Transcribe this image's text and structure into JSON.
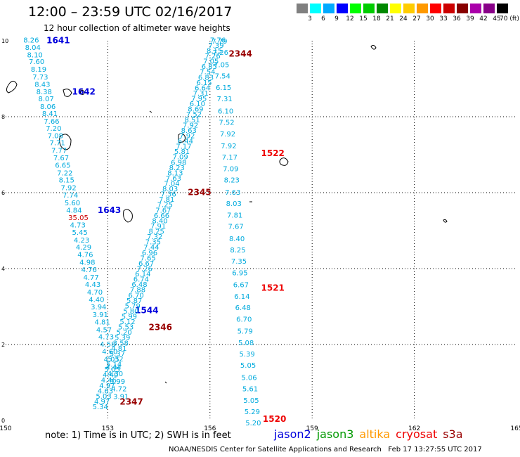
{
  "header": {
    "title": "12:00 – 23:59 UTC 02/16/2017",
    "subtitle": "12 hour collection of altimeter wave heights"
  },
  "color_scale": {
    "labels": [
      "3",
      "6",
      "9",
      "12",
      "15",
      "18",
      "21",
      "24",
      "27",
      "30",
      "33",
      "36",
      "39",
      "42",
      "45",
      "70 (ft)"
    ],
    "colors": [
      "#808080",
      "#00ffff",
      "#00aaff",
      "#0000ff",
      "#00ff00",
      "#00cc00",
      "#008800",
      "#ffff00",
      "#ffcc00",
      "#ff9900",
      "#ff0000",
      "#cc0000",
      "#880000",
      "#aa00aa",
      "#880088",
      "#000000"
    ]
  },
  "footer": {
    "note": "note: 1) Time is in UTC; 2) SWH is in feet",
    "credit": "NOAA/NESDIS Center for Satellite Applications and Research   Feb 17 13:27:55 UTC 2017"
  },
  "legend": [
    {
      "name": "jason2",
      "color": "#0000dd"
    },
    {
      "name": "jason3",
      "color": "#009900"
    },
    {
      "name": "altika",
      "color": "#ff9900"
    },
    {
      "name": "cryosat",
      "color": "#ee0000"
    },
    {
      "name": "s3a",
      "color": "#990000"
    }
  ],
  "chart_data": {
    "type": "scatter",
    "x_ticks": [
      "150",
      "153",
      "156",
      "159",
      "162",
      "165"
    ],
    "y_ticks": [
      "0",
      "2",
      "4",
      "6",
      "8",
      "10"
    ],
    "xlim": [
      150,
      165
    ],
    "ylim": [
      0,
      10
    ],
    "grid": true,
    "value_color": "#00aadd",
    "series": [
      {
        "name": "jason2",
        "label_color": "#0000dd",
        "points": [
          [
            150.52,
            10.03,
            "8.26"
          ],
          [
            150.57,
            9.83,
            "8.04"
          ],
          [
            150.63,
            9.64,
            "8.10"
          ],
          [
            150.68,
            9.46,
            "7.60"
          ],
          [
            150.74,
            9.26,
            "8.19"
          ],
          [
            150.79,
            9.06,
            "7.73"
          ],
          [
            150.85,
            8.86,
            "8.43"
          ],
          [
            150.9,
            8.67,
            "8.38"
          ],
          [
            150.96,
            8.48,
            "8.07"
          ],
          [
            151.01,
            8.28,
            "8.06"
          ],
          [
            151.07,
            8.09,
            "8.41"
          ],
          [
            151.12,
            7.89,
            "7.66"
          ],
          [
            151.18,
            7.7,
            "7.20"
          ],
          [
            151.23,
            7.51,
            "7.08"
          ],
          [
            151.29,
            7.32,
            "7.71"
          ],
          [
            151.34,
            7.12,
            "7.77"
          ],
          [
            151.4,
            6.93,
            "7.67"
          ],
          [
            151.45,
            6.73,
            "6.65"
          ],
          [
            151.51,
            6.53,
            "7.22"
          ],
          [
            151.56,
            6.34,
            "8.15"
          ],
          [
            151.62,
            6.14,
            "7.92"
          ],
          [
            151.67,
            5.94,
            "7.74"
          ],
          [
            151.73,
            5.74,
            "5.60"
          ],
          [
            151.78,
            5.55,
            "4.84"
          ],
          [
            151.84,
            5.35,
            "35.05"
          ],
          [
            151.89,
            5.16,
            "4.73"
          ],
          [
            151.95,
            4.96,
            "5.45"
          ],
          [
            152.0,
            4.76,
            "4.23"
          ],
          [
            152.06,
            4.57,
            "4.29"
          ],
          [
            152.11,
            4.38,
            "4.76"
          ],
          [
            152.17,
            4.18,
            "4.98"
          ],
          [
            152.22,
            3.98,
            "4.76"
          ],
          [
            152.28,
            3.78,
            "4.77"
          ],
          [
            152.33,
            3.59,
            "4.43"
          ],
          [
            152.39,
            3.39,
            "4.70"
          ],
          [
            152.44,
            3.19,
            "4.40"
          ],
          [
            152.5,
            3.0,
            "3.94"
          ],
          [
            152.55,
            2.8,
            "3.91"
          ],
          [
            152.61,
            2.6,
            "4.81"
          ],
          [
            152.66,
            2.4,
            "4.57"
          ],
          [
            152.72,
            2.21,
            "4.73"
          ],
          [
            152.77,
            2.02,
            "4.58"
          ],
          [
            152.83,
            1.82,
            "4.60"
          ],
          [
            152.88,
            1.62,
            "4.05"
          ],
          [
            152.94,
            1.42,
            "4.44"
          ],
          [
            152.99,
            1.24,
            "4.30"
          ],
          [
            153.05,
            1.04,
            "3.99"
          ],
          [
            153.1,
            0.84,
            "4.72"
          ],
          [
            153.16,
            0.64,
            "3.91"
          ]
        ],
        "labels": [
          [
            151.2,
            10.03,
            "1641"
          ],
          [
            151.95,
            8.68,
            "1642"
          ],
          [
            152.7,
            5.56,
            "1643"
          ],
          [
            153.8,
            2.92,
            "1544"
          ]
        ]
      },
      {
        "name": "s3a",
        "label_color": "#990000",
        "points": [
          [
            156.0,
            10.03,
            "7.76"
          ],
          [
            155.95,
            9.89,
            "7.39"
          ],
          [
            155.9,
            9.75,
            "8.15"
          ],
          [
            155.85,
            9.61,
            "7.26"
          ],
          [
            155.8,
            9.47,
            "7.05"
          ],
          [
            155.75,
            9.33,
            "6.85"
          ],
          [
            155.7,
            9.19,
            "7.54"
          ],
          [
            155.65,
            9.05,
            "6.83"
          ],
          [
            155.6,
            8.91,
            "6.15"
          ],
          [
            155.55,
            8.77,
            "6.64"
          ],
          [
            155.5,
            8.63,
            "7.31"
          ],
          [
            155.45,
            8.49,
            "7.95"
          ],
          [
            155.4,
            8.35,
            "6.10"
          ],
          [
            155.35,
            8.21,
            "8.69"
          ],
          [
            155.3,
            8.07,
            "7.52"
          ],
          [
            155.25,
            7.93,
            "8.51"
          ],
          [
            155.2,
            7.79,
            "7.92"
          ],
          [
            155.15,
            7.65,
            "8.63"
          ],
          [
            155.1,
            7.51,
            "7.92"
          ],
          [
            155.05,
            7.37,
            "6.44"
          ],
          [
            155.0,
            7.23,
            "7.17"
          ],
          [
            154.95,
            7.09,
            "5.81"
          ],
          [
            154.9,
            6.95,
            "7.09"
          ],
          [
            154.85,
            6.81,
            "6.98"
          ],
          [
            154.8,
            6.67,
            "8.23"
          ],
          [
            154.75,
            6.53,
            "8.13"
          ],
          [
            154.7,
            6.39,
            "7.63"
          ],
          [
            154.65,
            6.25,
            "7.04"
          ],
          [
            154.6,
            6.11,
            "8.03"
          ],
          [
            154.55,
            5.97,
            "7.36"
          ],
          [
            154.5,
            5.83,
            "7.81"
          ],
          [
            154.45,
            5.69,
            "7.25"
          ],
          [
            154.4,
            5.55,
            "7.67"
          ],
          [
            154.35,
            5.41,
            "6.66"
          ],
          [
            154.3,
            5.27,
            "8.40"
          ],
          [
            154.25,
            5.13,
            "7.91"
          ],
          [
            154.2,
            4.99,
            "8.25"
          ],
          [
            154.15,
            4.85,
            "7.32"
          ],
          [
            154.1,
            4.71,
            "7.35"
          ],
          [
            154.05,
            4.57,
            "7.44"
          ],
          [
            154.0,
            4.43,
            "6.96"
          ],
          [
            153.95,
            4.29,
            "7.65"
          ],
          [
            153.9,
            4.15,
            "6.67"
          ],
          [
            153.85,
            4.01,
            "7.26"
          ],
          [
            153.8,
            3.87,
            "6.14"
          ],
          [
            153.75,
            3.73,
            "6.74"
          ],
          [
            153.7,
            3.59,
            "6.48"
          ],
          [
            153.65,
            3.45,
            "7.88"
          ],
          [
            153.6,
            3.31,
            "6.70"
          ],
          [
            153.55,
            3.17,
            "5.87"
          ],
          [
            153.5,
            3.03,
            "5.79"
          ],
          [
            153.45,
            2.89,
            "5.80"
          ],
          [
            153.4,
            2.75,
            "5.99"
          ],
          [
            153.35,
            2.61,
            "5.12"
          ],
          [
            153.3,
            2.47,
            "5.53"
          ],
          [
            153.25,
            2.33,
            "5.20"
          ],
          [
            153.2,
            2.19,
            "5.39"
          ],
          [
            153.15,
            2.05,
            "3.58"
          ],
          [
            153.1,
            1.91,
            "4.81"
          ],
          [
            153.05,
            1.77,
            "5.37"
          ],
          [
            153.0,
            1.63,
            "5.32"
          ],
          [
            152.95,
            1.49,
            "5.14"
          ],
          [
            152.9,
            1.35,
            "5.05"
          ],
          [
            152.85,
            1.21,
            "4.40"
          ],
          [
            152.8,
            1.07,
            "4.46"
          ],
          [
            152.75,
            0.93,
            "4.97"
          ],
          [
            152.7,
            0.79,
            "4.63"
          ],
          [
            152.65,
            0.65,
            "5.03"
          ],
          [
            152.6,
            0.51,
            "4.97"
          ],
          [
            152.55,
            0.37,
            "5.34"
          ]
        ],
        "labels": [
          [
            156.55,
            9.68,
            "2344"
          ],
          [
            155.35,
            6.03,
            "2345"
          ],
          [
            154.2,
            2.47,
            "2346"
          ],
          [
            153.35,
            0.51,
            "2347"
          ]
        ]
      },
      {
        "name": "cryosat",
        "label_color": "#ee0000",
        "points": [
          [
            156.05,
            10.0,
            "7.79"
          ],
          [
            156.08,
            9.7,
            "7.26"
          ],
          [
            156.11,
            9.38,
            "7.05"
          ],
          [
            156.14,
            9.08,
            "7.54"
          ],
          [
            156.17,
            8.78,
            "6.15"
          ],
          [
            156.2,
            8.48,
            "7.31"
          ],
          [
            156.23,
            8.16,
            "6.10"
          ],
          [
            156.26,
            7.86,
            "7.52"
          ],
          [
            156.29,
            7.56,
            "7.92"
          ],
          [
            156.32,
            7.24,
            "7.92"
          ],
          [
            156.35,
            6.94,
            "7.17"
          ],
          [
            156.38,
            6.64,
            "7.09"
          ],
          [
            156.41,
            6.34,
            "8.23"
          ],
          [
            156.44,
            6.02,
            "7.63"
          ],
          [
            156.47,
            5.72,
            "8.03"
          ],
          [
            156.5,
            5.42,
            "7.81"
          ],
          [
            156.53,
            5.12,
            "7.67"
          ],
          [
            156.56,
            4.8,
            "8.40"
          ],
          [
            156.59,
            4.5,
            "8.25"
          ],
          [
            156.62,
            4.2,
            "7.35"
          ],
          [
            156.65,
            3.9,
            "6.95"
          ],
          [
            156.68,
            3.58,
            "6.67"
          ],
          [
            156.71,
            3.28,
            "6.14"
          ],
          [
            156.74,
            2.98,
            "6.48"
          ],
          [
            156.77,
            2.68,
            "6.70"
          ],
          [
            156.8,
            2.36,
            "5.79"
          ],
          [
            156.83,
            2.06,
            "5.08"
          ],
          [
            156.86,
            1.76,
            "5.39"
          ],
          [
            156.89,
            1.46,
            "5.05"
          ],
          [
            156.92,
            1.14,
            "5.06"
          ],
          [
            156.95,
            0.84,
            "5.61"
          ],
          [
            156.98,
            0.54,
            "5.05"
          ],
          [
            157.01,
            0.24,
            "5.29"
          ],
          [
            157.04,
            -0.06,
            "5.20"
          ]
        ],
        "labels": [
          [
            157.5,
            7.06,
            "1522"
          ],
          [
            157.5,
            3.51,
            "1521"
          ],
          [
            157.55,
            0.06,
            "1520"
          ]
        ]
      }
    ]
  }
}
